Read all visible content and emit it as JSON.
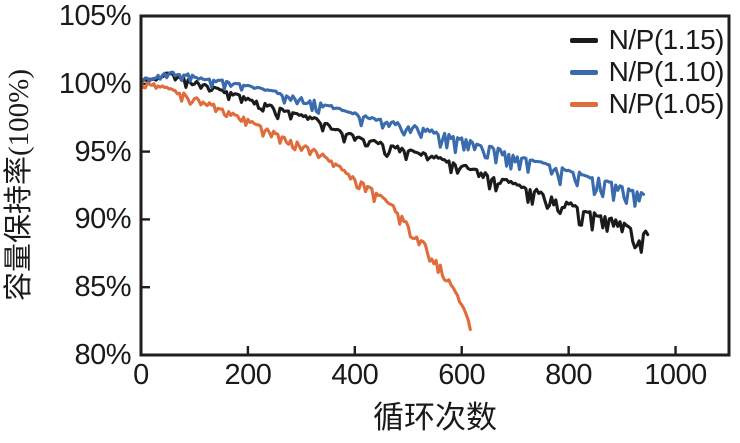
{
  "chart_data": {
    "type": "line",
    "title": "",
    "xlabel": "循环次数",
    "ylabel": "容量保持率(100%)",
    "xlim": [
      0,
      1100
    ],
    "ylim": [
      80,
      105
    ],
    "x_ticks": {
      "values": [
        0,
        200,
        400,
        600,
        800,
        1000
      ],
      "labels": [
        "0",
        "200",
        "400",
        "600",
        "800",
        "1000"
      ]
    },
    "y_ticks": {
      "values": [
        80,
        85,
        90,
        95,
        100,
        105
      ],
      "labels": [
        "80%",
        "85%",
        "90%",
        "95%",
        "100%",
        "105%"
      ]
    },
    "grid": false,
    "axis_color": "#221d19",
    "legend_position": "top-right-inside",
    "series": [
      {
        "name": "N/P(1.15)",
        "color": "#1b1b1b",
        "points": [
          [
            0,
            100.2
          ],
          [
            30,
            100.4
          ],
          [
            55,
            100.8
          ],
          [
            80,
            100.3
          ],
          [
            115,
            100.0
          ],
          [
            170,
            99.3
          ],
          [
            230,
            98.5
          ],
          [
            290,
            97.8
          ],
          [
            325,
            97.5
          ],
          [
            372,
            96.5
          ],
          [
            430,
            95.8
          ],
          [
            456,
            95.5
          ],
          [
            500,
            95.1
          ],
          [
            560,
            94.5
          ],
          [
            620,
            93.7
          ],
          [
            680,
            92.9
          ],
          [
            740,
            92.1
          ],
          [
            800,
            91.2
          ],
          [
            860,
            90.2
          ],
          [
            900,
            89.8
          ],
          [
            925,
            89.2
          ],
          [
            940,
            88.9
          ],
          [
            950,
            89.3
          ]
        ],
        "noise": {
          "seed": 11,
          "dip_chance": 0.3,
          "dip_min": 0.2,
          "dip_max": 1.0,
          "scale_start": 0.35,
          "scale_end": 1.45,
          "jitter": 0.1
        }
      },
      {
        "name": "N/P(1.10)",
        "color": "#3a6cad",
        "points": [
          [
            0,
            100.3
          ],
          [
            30,
            100.5
          ],
          [
            55,
            101.0
          ],
          [
            75,
            100.7
          ],
          [
            115,
            100.4
          ],
          [
            170,
            100.1
          ],
          [
            230,
            99.6
          ],
          [
            290,
            99.0
          ],
          [
            325,
            98.7
          ],
          [
            372,
            98.1
          ],
          [
            430,
            97.5
          ],
          [
            456,
            97.2
          ],
          [
            500,
            96.9
          ],
          [
            560,
            96.3
          ],
          [
            620,
            95.7
          ],
          [
            680,
            95.0
          ],
          [
            740,
            94.3
          ],
          [
            800,
            93.6
          ],
          [
            860,
            92.9
          ],
          [
            900,
            92.4
          ],
          [
            940,
            91.9
          ]
        ],
        "noise": {
          "seed": 22,
          "dip_chance": 0.3,
          "dip_min": 0.2,
          "dip_max": 1.1,
          "scale_start": 0.35,
          "scale_end": 1.4,
          "jitter": 0.1
        }
      },
      {
        "name": "N/P(1.05)",
        "color": "#e06c3c",
        "points": [
          [
            0,
            100.1
          ],
          [
            40,
            99.8
          ],
          [
            80,
            99.2
          ],
          [
            120,
            98.6
          ],
          [
            160,
            98.0
          ],
          [
            200,
            97.3
          ],
          [
            240,
            96.6
          ],
          [
            280,
            95.9
          ],
          [
            320,
            95.2
          ],
          [
            360,
            94.2
          ],
          [
            400,
            93.0
          ],
          [
            440,
            92.0
          ],
          [
            470,
            91.0
          ],
          [
            500,
            89.5
          ],
          [
            530,
            88.2
          ],
          [
            560,
            86.5
          ],
          [
            585,
            84.9
          ],
          [
            605,
            83.3
          ],
          [
            618,
            82.1
          ]
        ],
        "noise": {
          "seed": 33,
          "dip_chance": 0.32,
          "dip_min": 0.3,
          "dip_max": 0.95,
          "scale_start": 0.6,
          "scale_end": 0.85,
          "jitter": 0.1
        }
      }
    ]
  }
}
